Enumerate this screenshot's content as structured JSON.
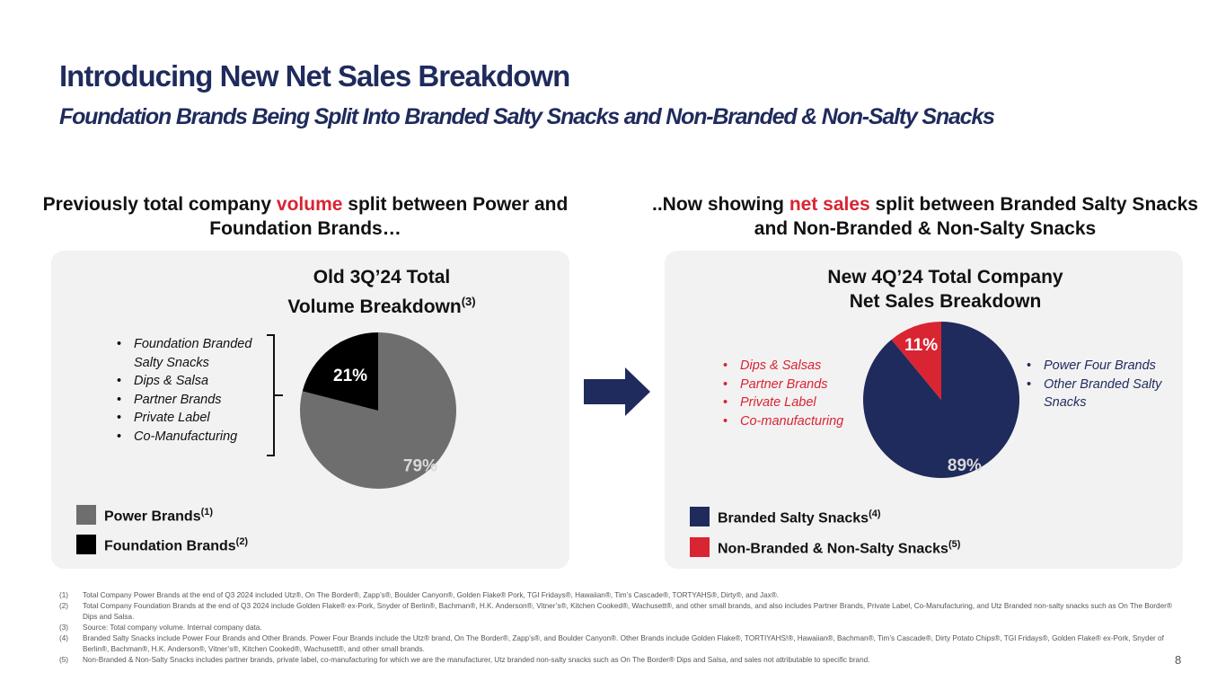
{
  "header": {
    "title": "Introducing New Net Sales Breakdown",
    "subtitle": "Foundation Brands Being Split Into Branded Salty Snacks and Non-Branded & Non-Salty Snacks"
  },
  "left": {
    "heading": {
      "before": "Previously total company ",
      "highlight": "volume",
      "after": " split between Power and Foundation Brands…"
    },
    "chart_title_line1": "Old 3Q’24 Total",
    "chart_title_line2": "Volume Breakdown",
    "chart_title_note": "(3)",
    "bullets": [
      "Foundation Branded Salty Snacks",
      "Dips & Salsa",
      "Partner Brands",
      "Private Label",
      "Co-Manufacturing"
    ],
    "legend": [
      {
        "label": "Power Brands",
        "note": "(1)",
        "color": "#6e6e6e"
      },
      {
        "label": "Foundation Brands",
        "note": "(2)",
        "color": "#000000"
      }
    ]
  },
  "right": {
    "heading": {
      "before": "..Now showing ",
      "highlight": "net sales",
      "after": " split between Branded Salty Snacks and Non-Branded & Non-Salty Snacks"
    },
    "chart_title_line1": "New 4Q’24 Total Company",
    "chart_title_line2": "Net Sales Breakdown",
    "bullets_red": [
      "Dips & Salsas",
      "Partner Brands",
      "Private Label",
      "Co-manufacturing"
    ],
    "bullets_blue": [
      "Power Four Brands",
      "Other Branded Salty Snacks"
    ],
    "legend": [
      {
        "label": "Branded Salty Snacks",
        "note": "(4)",
        "color": "#1f2b5c"
      },
      {
        "label": "Non-Branded & Non-Salty Snacks",
        "note": "(5)",
        "color": "#d92432"
      }
    ]
  },
  "chart_data": [
    {
      "type": "pie",
      "title": "Old 3Q’24 Total Volume Breakdown(3)",
      "categories": [
        "Power Brands",
        "Foundation Brands"
      ],
      "values": [
        79,
        21
      ],
      "labels": [
        "79%",
        "21%"
      ],
      "colors": [
        "#6e6e6e",
        "#000000"
      ]
    },
    {
      "type": "pie",
      "title": "New 4Q’24 Total Company Net Sales Breakdown",
      "categories": [
        "Branded Salty Snacks",
        "Non-Branded & Non-Salty Snacks"
      ],
      "values": [
        89,
        11
      ],
      "labels": [
        "89%",
        "11%"
      ],
      "colors": [
        "#1f2b5c",
        "#d92432"
      ]
    }
  ],
  "colors": {
    "navy": "#1f2b5c",
    "red": "#d92432",
    "panel": "#f2f2f2"
  },
  "footnotes": [
    {
      "num": "(1)",
      "text": "Total Company Power Brands at the end of Q3 2024 included Utz®, On The Border®, Zapp’s®, Boulder Canyon®, Golden Flake® Pork, TGI Fridays®, Hawaiian®, Tim’s Cascade®, TORTYAHS®, Dirty®, and Jax®."
    },
    {
      "num": "(2)",
      "text": "Total Company Foundation Brands at the end of Q3 2024 include Golden Flake® ex-Pork, Snyder of Berlin®, Bachman®, H.K. Anderson®, Vitner’s®, Kitchen Cooked®, Wachusett®, and other small brands, and also includes Partner Brands, Private Label, Co-Manufacturing, and Utz Branded non-salty snacks such as On The Border® Dips and Salsa."
    },
    {
      "num": "(3)",
      "text": "Source: Total company volume. Internal company data."
    },
    {
      "num": "(4)",
      "text": "Branded Salty Snacks include Power Four Brands and Other Brands. Power Four Brands include the Utz® brand, On The Border®, Zapp’s®, and Boulder Canyon®. Other Brands include Golden Flake®, TORTIYAHS!®, Hawaiian®, Bachman®, Tim’s Cascade®, Dirty Potato Chips®, TGI Fridays®, Golden Flake® ex-Pork, Snyder of Berlin®, Bachman®, H.K. Anderson®, Vitner’s®, Kitchen Cooked®, Wachusett®, and other small brands."
    },
    {
      "num": "(5)",
      "text": "Non-Branded & Non-Salty Snacks includes partner brands, private label, co-manufacturing for which we are the manufacturer, Utz branded non-salty snacks such as On The Border® Dips and Salsa, and sales not attributable to specific brand."
    }
  ],
  "page_number": "8"
}
